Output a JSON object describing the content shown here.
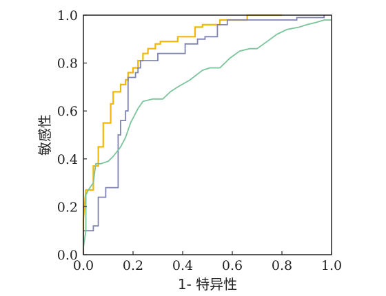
{
  "chart_data": {
    "type": "line",
    "title": "",
    "xlabel": "1- 特异性",
    "ylabel": "敏感性",
    "xlim": [
      0,
      1
    ],
    "ylim": [
      0,
      1
    ],
    "xticks": [
      "0.0",
      "0.2",
      "0.4",
      "0.6",
      "0.8",
      "1.0"
    ],
    "yticks": [
      "0.0",
      "0.2",
      "0.4",
      "0.6",
      "0.8",
      "1.0"
    ],
    "grid": false,
    "legend": "none",
    "series": [
      {
        "color": "#f2b705",
        "points": [
          [
            0,
            0
          ],
          [
            0,
            0.15
          ],
          [
            0.01,
            0.27
          ],
          [
            0.04,
            0.27
          ],
          [
            0.04,
            0.37
          ],
          [
            0.06,
            0.37
          ],
          [
            0.06,
            0.45
          ],
          [
            0.08,
            0.45
          ],
          [
            0.08,
            0.55
          ],
          [
            0.11,
            0.55
          ],
          [
            0.11,
            0.63
          ],
          [
            0.12,
            0.63
          ],
          [
            0.12,
            0.68
          ],
          [
            0.15,
            0.68
          ],
          [
            0.15,
            0.71
          ],
          [
            0.17,
            0.71
          ],
          [
            0.17,
            0.73
          ],
          [
            0.18,
            0.73
          ],
          [
            0.18,
            0.76
          ],
          [
            0.2,
            0.76
          ],
          [
            0.2,
            0.78
          ],
          [
            0.22,
            0.78
          ],
          [
            0.22,
            0.81
          ],
          [
            0.24,
            0.81
          ],
          [
            0.24,
            0.84
          ],
          [
            0.26,
            0.84
          ],
          [
            0.26,
            0.86
          ],
          [
            0.29,
            0.86
          ],
          [
            0.29,
            0.88
          ],
          [
            0.31,
            0.88
          ],
          [
            0.31,
            0.89
          ],
          [
            0.38,
            0.89
          ],
          [
            0.38,
            0.91
          ],
          [
            0.45,
            0.91
          ],
          [
            0.45,
            0.95
          ],
          [
            0.48,
            0.95
          ],
          [
            0.48,
            0.96
          ],
          [
            0.55,
            0.96
          ],
          [
            0.55,
            0.98
          ],
          [
            0.66,
            0.98
          ],
          [
            0.66,
            1.0
          ],
          [
            0.8,
            1.0
          ],
          [
            0.8,
            1.0
          ]
        ]
      },
      {
        "color": "#7e83b3",
        "points": [
          [
            0,
            0
          ],
          [
            0,
            0.1
          ],
          [
            0.04,
            0.1
          ],
          [
            0.04,
            0.12
          ],
          [
            0.06,
            0.12
          ],
          [
            0.06,
            0.24
          ],
          [
            0.09,
            0.24
          ],
          [
            0.09,
            0.28
          ],
          [
            0.14,
            0.28
          ],
          [
            0.14,
            0.5
          ],
          [
            0.15,
            0.5
          ],
          [
            0.15,
            0.56
          ],
          [
            0.17,
            0.56
          ],
          [
            0.17,
            0.6
          ],
          [
            0.18,
            0.6
          ],
          [
            0.18,
            0.74
          ],
          [
            0.21,
            0.74
          ],
          [
            0.21,
            0.76
          ],
          [
            0.22,
            0.76
          ],
          [
            0.22,
            0.78
          ],
          [
            0.23,
            0.78
          ],
          [
            0.23,
            0.81
          ],
          [
            0.3,
            0.81
          ],
          [
            0.3,
            0.84
          ],
          [
            0.41,
            0.84
          ],
          [
            0.41,
            0.88
          ],
          [
            0.46,
            0.88
          ],
          [
            0.46,
            0.9
          ],
          [
            0.49,
            0.9
          ],
          [
            0.49,
            0.91
          ],
          [
            0.54,
            0.91
          ],
          [
            0.54,
            0.96
          ],
          [
            0.58,
            0.96
          ],
          [
            0.58,
            0.98
          ],
          [
            0.86,
            0.98
          ],
          [
            0.86,
            0.99
          ],
          [
            0.97,
            0.99
          ],
          [
            0.97,
            1.0
          ]
        ]
      },
      {
        "color": "#7bc39a",
        "points": [
          [
            0,
            0.03
          ],
          [
            0.01,
            0.1
          ],
          [
            0.01,
            0.25
          ],
          [
            0.02,
            0.27
          ],
          [
            0.04,
            0.3
          ],
          [
            0.05,
            0.38
          ],
          [
            0.07,
            0.38
          ],
          [
            0.1,
            0.39
          ],
          [
            0.12,
            0.41
          ],
          [
            0.15,
            0.45
          ],
          [
            0.17,
            0.49
          ],
          [
            0.19,
            0.55
          ],
          [
            0.22,
            0.61
          ],
          [
            0.24,
            0.64
          ],
          [
            0.28,
            0.65
          ],
          [
            0.32,
            0.65
          ],
          [
            0.35,
            0.68
          ],
          [
            0.38,
            0.7
          ],
          [
            0.43,
            0.73
          ],
          [
            0.48,
            0.77
          ],
          [
            0.51,
            0.78
          ],
          [
            0.55,
            0.78
          ],
          [
            0.59,
            0.82
          ],
          [
            0.63,
            0.85
          ],
          [
            0.67,
            0.86
          ],
          [
            0.7,
            0.86
          ],
          [
            0.74,
            0.89
          ],
          [
            0.78,
            0.92
          ],
          [
            0.82,
            0.94
          ],
          [
            0.87,
            0.95
          ],
          [
            0.9,
            0.96
          ],
          [
            0.94,
            0.97
          ],
          [
            0.97,
            0.98
          ],
          [
            1.0,
            0.98
          ]
        ]
      }
    ]
  }
}
